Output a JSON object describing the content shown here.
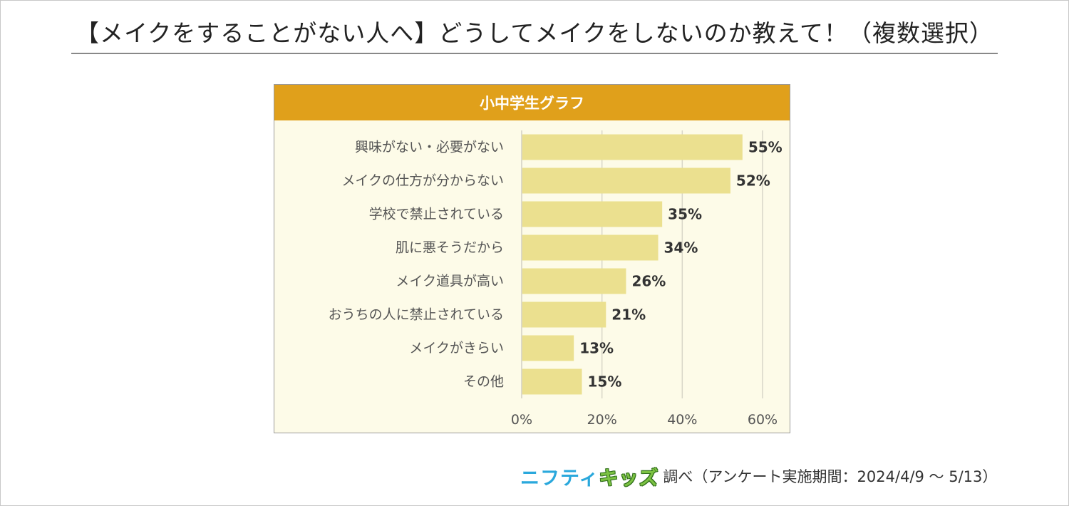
{
  "title": "【メイクをすることがない人へ】どうしてメイクをしないのか教えて！（複数選択）",
  "chart_data": {
    "type": "bar",
    "orientation": "horizontal",
    "title": "小中学生グラフ",
    "categories": [
      "興味がない・必要がない",
      "メイクの仕方が分からない",
      "学校で禁止されている",
      "肌に悪そうだから",
      "メイク道具が高い",
      "おうちの人に禁止されている",
      "メイクがきらい",
      "その他"
    ],
    "values": [
      55,
      52,
      35,
      34,
      26,
      21,
      13,
      15
    ],
    "value_labels": [
      "55%",
      "52%",
      "35%",
      "34%",
      "26%",
      "21%",
      "13%",
      "15%"
    ],
    "xlim": [
      0,
      60
    ],
    "xticks": [
      0,
      20,
      40,
      60
    ],
    "xtick_labels": [
      "0%",
      "20%",
      "40%",
      "60%"
    ],
    "grid": true,
    "colors": {
      "bar": "#ebe08f",
      "header": "#e0a01b",
      "grid": "#d8d6c8"
    }
  },
  "footer": {
    "brand_part1": "ニフティ",
    "brand_part2": "キッズ",
    "note": "調べ（アンケート実施期間：2024/4/9 ～ 5/13）"
  }
}
